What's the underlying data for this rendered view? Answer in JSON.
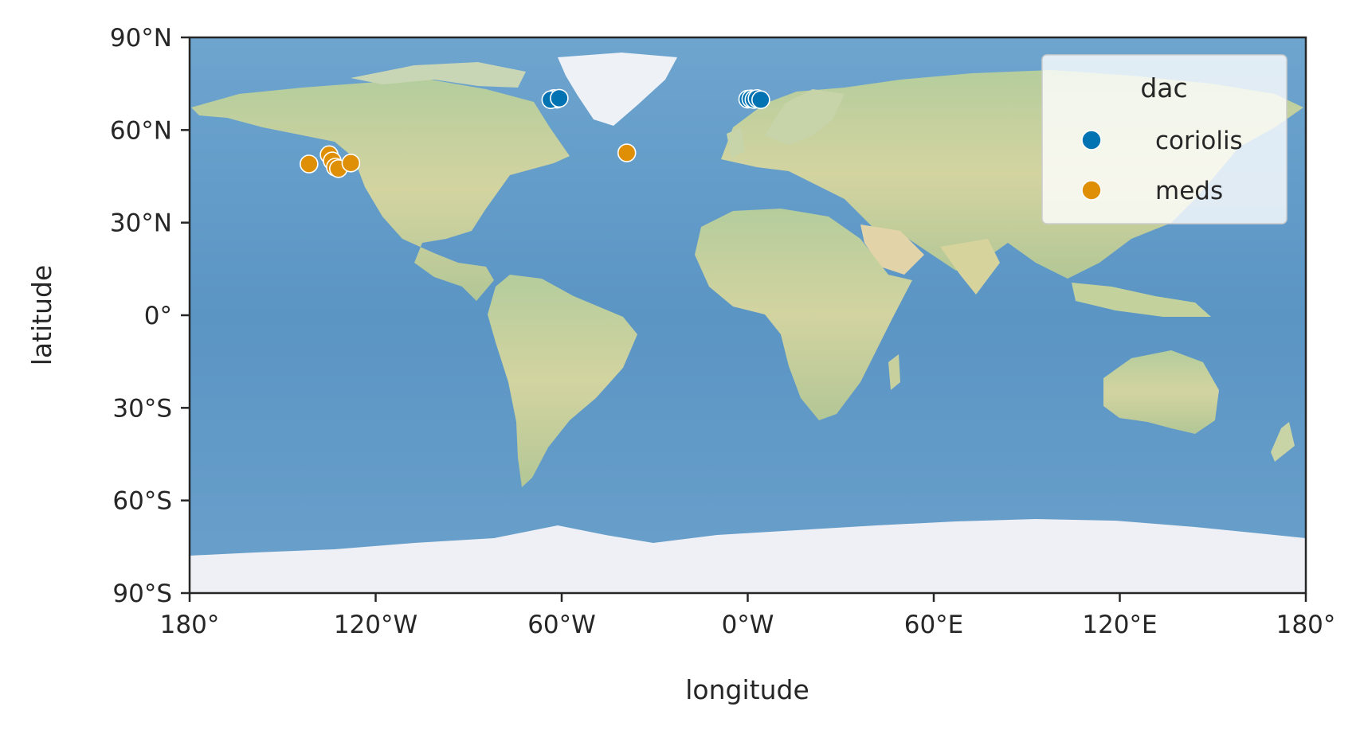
{
  "chart_data": {
    "type": "scatter",
    "title": "",
    "xlabel": "longitude",
    "ylabel": "latitude",
    "xlim": [
      -180,
      180
    ],
    "ylim": [
      -90,
      90
    ],
    "xticks": [
      {
        "value": -180,
        "label": "180°"
      },
      {
        "value": -120,
        "label": "120°W"
      },
      {
        "value": -60,
        "label": "60°W"
      },
      {
        "value": 0,
        "label": "0°W"
      },
      {
        "value": 60,
        "label": "60°E"
      },
      {
        "value": 120,
        "label": "120°E"
      },
      {
        "value": 180,
        "label": "180°"
      }
    ],
    "yticks": [
      {
        "value": 90,
        "label": "90°N"
      },
      {
        "value": 60,
        "label": "60°N"
      },
      {
        "value": 30,
        "label": "30°N"
      },
      {
        "value": 0,
        "label": "0°"
      },
      {
        "value": -30,
        "label": "30°S"
      },
      {
        "value": -60,
        "label": "60°S"
      },
      {
        "value": -90,
        "label": "90°S"
      }
    ],
    "grid": false,
    "background": "world physical/shaded-relief basemap",
    "legend": {
      "title": "dac",
      "placement": "top-right"
    },
    "series": [
      {
        "name": "coriolis",
        "color": "#0173b2",
        "points": [
          {
            "lon": -61.5,
            "lat": 70.0
          },
          {
            "lon": -62.5,
            "lat": 70.2
          },
          {
            "lon": -63.5,
            "lat": 69.8
          },
          {
            "lon": -60.8,
            "lat": 70.3
          },
          {
            "lon": 0.0,
            "lat": 70.0
          },
          {
            "lon": 1.0,
            "lat": 70.1
          },
          {
            "lon": 2.0,
            "lat": 69.9
          },
          {
            "lon": 3.0,
            "lat": 70.2
          },
          {
            "lon": 4.2,
            "lat": 69.8
          }
        ]
      },
      {
        "name": "meds",
        "color": "#de8f05",
        "points": [
          {
            "lon": -141.5,
            "lat": 49.0
          },
          {
            "lon": -135.0,
            "lat": 52.0
          },
          {
            "lon": -134.0,
            "lat": 50.0
          },
          {
            "lon": -133.0,
            "lat": 48.0
          },
          {
            "lon": -132.0,
            "lat": 47.5
          },
          {
            "lon": -128.0,
            "lat": 49.3
          },
          {
            "lon": -39.0,
            "lat": 52.6
          }
        ]
      }
    ]
  }
}
